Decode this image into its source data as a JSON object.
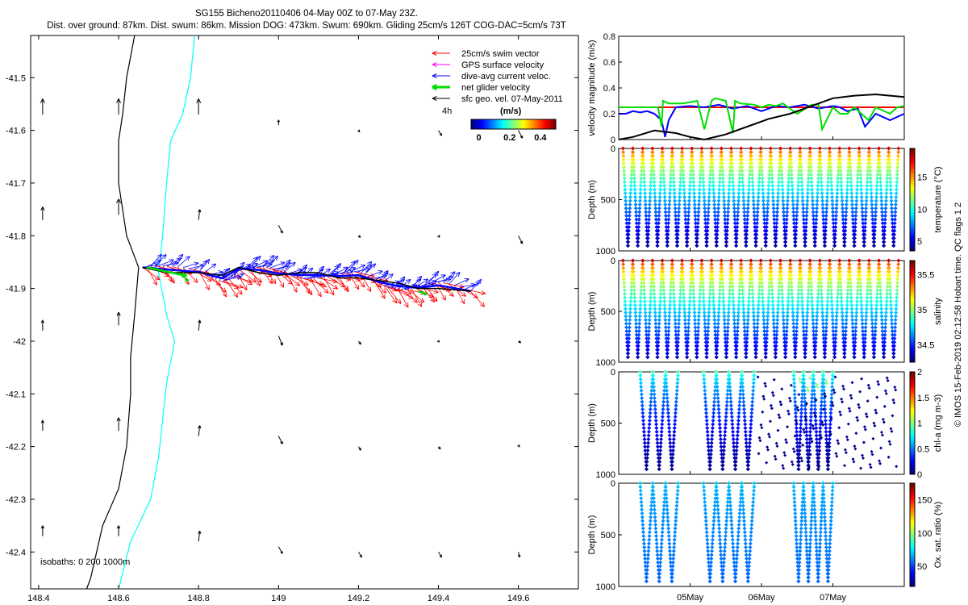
{
  "title_line1": "SG155 Bicheno20110406 04-May 00Z to 07-May 23Z.",
  "title_line2": "Dist. over ground: 87km. Dist. swum: 86km. Mission DOG: 473km. Swum: 690km. Gliding 25cm/s 126T COG-DAC=5cm/s 73T",
  "credit": "© IMOS 15-Feb-2019 02:12:58 Hobart time. QC flags 1  2",
  "colors": {
    "swim": "#ff0000",
    "gps": "#ff00ff",
    "dac": "#0000ff",
    "net": "#00dd00",
    "sfc": "#000000",
    "isobath0": "#000000",
    "isobath200": "#00ffff",
    "ref_line": "#ff0000"
  },
  "chart_data": [
    {
      "type": "quiver-map",
      "x": {
        "ticks": [
          "148.4",
          "148.6",
          "148.8",
          "149",
          "149.2",
          "149.4",
          "149.6"
        ],
        "lim": [
          148.38,
          149.75
        ]
      },
      "y": {
        "ticks": [
          "-41.5",
          "-41.6",
          "-41.7",
          "-41.8",
          "-41.9",
          "-42",
          "-42.1",
          "-42.2",
          "-42.3",
          "-42.4"
        ],
        "lim": [
          -42.47,
          -41.42
        ]
      },
      "legend": [
        {
          "label": "25cm/s swim vector",
          "color": "#ff0000",
          "bold": false
        },
        {
          "label": "GPS surface velocity",
          "color": "#ff00ff",
          "bold": false
        },
        {
          "label": "dive-avg current veloc.",
          "color": "#0000ff",
          "bold": false
        },
        {
          "label": "net glider velocity",
          "color": "#00dd00",
          "bold": true
        },
        {
          "label": "sfc geo. vel. 07-May-2011",
          "color": "#000000",
          "bold": false
        }
      ],
      "legend_time": "4h",
      "colorbar": {
        "label": "(m/s)",
        "ticks": [
          "0",
          "0.2",
          "0.4"
        ],
        "lim": [
          -0.05,
          0.5
        ]
      },
      "isobaths_label": "isobaths: 0   200  1000m",
      "isobath_0": [
        [
          148.64,
          -41.42
        ],
        [
          148.62,
          -41.5
        ],
        [
          148.61,
          -41.57
        ],
        [
          148.6,
          -41.62
        ],
        [
          148.6,
          -41.7
        ],
        [
          148.62,
          -41.8
        ],
        [
          148.65,
          -41.86
        ],
        [
          148.64,
          -41.95
        ],
        [
          148.63,
          -42.03
        ],
        [
          148.63,
          -42.1
        ],
        [
          148.62,
          -42.2
        ],
        [
          148.6,
          -42.28
        ],
        [
          148.56,
          -42.35
        ],
        [
          148.53,
          -42.45
        ],
        [
          148.52,
          -42.47
        ]
      ],
      "isobath_200": [
        [
          148.79,
          -41.42
        ],
        [
          148.78,
          -41.5
        ],
        [
          148.76,
          -41.57
        ],
        [
          148.73,
          -41.62
        ],
        [
          148.72,
          -41.7
        ],
        [
          148.71,
          -41.8
        ],
        [
          148.7,
          -41.87
        ],
        [
          148.72,
          -41.95
        ],
        [
          148.74,
          -42.0
        ],
        [
          148.72,
          -42.08
        ],
        [
          148.71,
          -42.15
        ],
        [
          148.7,
          -42.22
        ],
        [
          148.68,
          -42.3
        ],
        [
          148.63,
          -42.38
        ],
        [
          148.6,
          -42.47
        ]
      ],
      "geo_vectors": [
        [
          148.41,
          -41.57,
          0.0,
          0.03
        ],
        [
          148.6,
          -41.57,
          0.0,
          0.03
        ],
        [
          148.8,
          -41.57,
          0.0,
          0.03
        ],
        [
          149.0,
          -41.59,
          0.0,
          0.01
        ],
        [
          149.2,
          -41.6,
          0.003,
          -0.003
        ],
        [
          149.4,
          -41.6,
          0.008,
          -0.01
        ],
        [
          149.6,
          -41.6,
          0.01,
          -0.015
        ],
        [
          148.41,
          -41.77,
          0.0,
          0.025
        ],
        [
          148.6,
          -41.76,
          0.0,
          0.03
        ],
        [
          148.8,
          -41.77,
          0.003,
          0.02
        ],
        [
          149.0,
          -41.78,
          0.01,
          -0.015
        ],
        [
          149.2,
          -41.8,
          0.005,
          -0.003
        ],
        [
          149.4,
          -41.8,
          0.003,
          -0.003
        ],
        [
          149.6,
          -41.8,
          0.01,
          -0.015
        ],
        [
          148.41,
          -41.98,
          0.0,
          0.02
        ],
        [
          148.6,
          -41.97,
          0.0,
          0.025
        ],
        [
          148.8,
          -41.98,
          0.003,
          0.02
        ],
        [
          149.0,
          -41.99,
          0.01,
          -0.018
        ],
        [
          149.2,
          -42.0,
          0.006,
          -0.006
        ],
        [
          149.4,
          -42.0,
          0.002,
          -0.002
        ],
        [
          149.6,
          -42.0,
          0.006,
          -0.003
        ],
        [
          148.41,
          -42.17,
          0.0,
          0.02
        ],
        [
          148.6,
          -42.17,
          0.0,
          0.025
        ],
        [
          148.8,
          -42.18,
          0.003,
          0.02
        ],
        [
          149.0,
          -42.18,
          0.01,
          -0.015
        ],
        [
          149.2,
          -42.2,
          0.006,
          -0.007
        ],
        [
          149.4,
          -42.2,
          0.005,
          -0.005
        ],
        [
          149.6,
          -42.2,
          0.003,
          0.003
        ],
        [
          148.41,
          -42.37,
          0.0,
          0.02
        ],
        [
          148.6,
          -42.37,
          0.0,
          0.02
        ],
        [
          148.8,
          -42.38,
          0.003,
          0.02
        ],
        [
          149.0,
          -42.39,
          0.01,
          -0.013
        ],
        [
          149.2,
          -42.4,
          0.008,
          -0.01
        ],
        [
          149.4,
          -42.4,
          0.008,
          -0.01
        ],
        [
          149.6,
          -42.4,
          0.003,
          -0.01
        ]
      ],
      "track": [
        [
          148.66,
          -41.86
        ],
        [
          148.72,
          -41.87
        ],
        [
          148.8,
          -41.87
        ],
        [
          148.86,
          -41.875
        ],
        [
          148.9,
          -41.86
        ],
        [
          148.95,
          -41.87
        ],
        [
          149.0,
          -41.875
        ],
        [
          149.05,
          -41.87
        ],
        [
          149.1,
          -41.87
        ],
        [
          149.15,
          -41.88
        ],
        [
          149.2,
          -41.88
        ],
        [
          149.25,
          -41.885
        ],
        [
          149.3,
          -41.89
        ],
        [
          149.35,
          -41.9
        ],
        [
          149.4,
          -41.9
        ],
        [
          149.48,
          -41.905
        ]
      ],
      "net_velocity": [
        [
          148.67,
          -41.86,
          0.1,
          -0.01
        ],
        [
          148.77,
          -41.88,
          0.0,
          0.0
        ],
        [
          149.35,
          -41.905,
          0.02,
          0.0
        ]
      ]
    },
    {
      "type": "line",
      "ylabel": "velocity magnitude (m/s)",
      "ylim": [
        0,
        0.8
      ],
      "yticks": [
        "0",
        "0.2",
        "0.4",
        "0.6",
        "0.8"
      ],
      "series": [
        {
          "color": "#ff0000",
          "x": [
            0,
            4
          ],
          "y": [
            0.25,
            0.25
          ]
        },
        {
          "color": "#0000ff",
          "x": [
            0,
            0.1,
            0.2,
            0.3,
            0.4,
            0.5,
            0.6,
            0.65,
            0.7,
            0.8,
            1.0,
            1.2,
            1.4,
            1.6,
            1.8,
            2.0,
            2.2,
            2.4,
            2.6,
            2.8,
            3.0,
            3.1,
            3.2,
            3.35,
            3.45,
            3.6,
            3.8,
            4.0
          ],
          "y": [
            0.2,
            0.2,
            0.22,
            0.21,
            0.22,
            0.2,
            0.15,
            0.02,
            0.15,
            0.25,
            0.26,
            0.25,
            0.27,
            0.24,
            0.26,
            0.22,
            0.26,
            0.25,
            0.27,
            0.24,
            0.26,
            0.25,
            0.22,
            0.24,
            0.1,
            0.2,
            0.15,
            0.2
          ]
        },
        {
          "color": "#00dd00",
          "x": [
            0,
            0.2,
            0.4,
            0.55,
            0.6,
            0.62,
            0.7,
            0.9,
            1.1,
            1.2,
            1.3,
            1.35,
            1.5,
            1.6,
            1.63,
            1.7,
            1.9,
            2.0,
            2.1,
            2.2,
            2.3,
            2.5,
            2.7,
            2.8,
            2.85,
            3.0,
            3.1,
            3.2,
            3.3,
            3.5,
            3.6,
            3.8,
            3.9,
            4.0
          ],
          "y": [
            0.25,
            0.25,
            0.25,
            0.25,
            0.1,
            0.3,
            0.28,
            0.28,
            0.3,
            0.08,
            0.3,
            0.32,
            0.3,
            0.05,
            0.3,
            0.28,
            0.27,
            0.25,
            0.27,
            0.26,
            0.28,
            0.2,
            0.27,
            0.27,
            0.08,
            0.25,
            0.2,
            0.2,
            0.25,
            0.15,
            0.25,
            0.2,
            0.25,
            0.26
          ]
        },
        {
          "color": "#000000",
          "x": [
            0,
            0.2,
            0.5,
            0.8,
            1.0,
            1.2,
            1.5,
            1.8,
            2.1,
            2.4,
            2.7,
            3.0,
            3.3,
            3.6,
            3.8,
            4.0
          ],
          "y": [
            0.0,
            0.02,
            0.07,
            0.05,
            0.02,
            0.0,
            0.04,
            0.1,
            0.16,
            0.2,
            0.26,
            0.32,
            0.34,
            0.35,
            0.34,
            0.33
          ]
        }
      ]
    },
    {
      "type": "scatter",
      "ylabel": "Depth (m)",
      "ylim": [
        1000,
        0
      ],
      "yticks": [
        "0",
        "500",
        "1000"
      ],
      "colorbar_label": "temperature (°C)",
      "colorbar_ticks": [
        {
          "label": "5",
          "v": 5
        },
        {
          "label": "10",
          "v": 10
        },
        {
          "label": "15",
          "v": 15
        }
      ],
      "clim": [
        3.5,
        19.5
      ],
      "dives": {
        "start": 0.06,
        "end": 3.92,
        "count": 28,
        "max_depth": 950,
        "gaps": [],
        "sparse_from": null
      },
      "profile": {
        "surface": 18,
        "bottom": 4
      }
    },
    {
      "type": "scatter",
      "ylabel": "Depth (m)",
      "ylim": [
        1000,
        0
      ],
      "yticks": [
        "0",
        "500",
        "1000"
      ],
      "colorbar_label": "salinity",
      "colorbar_ticks": [
        {
          "label": "34.5",
          "v": 34.5
        },
        {
          "label": "35",
          "v": 35
        },
        {
          "label": "35.5",
          "v": 35.5
        }
      ],
      "clim": [
        34.25,
        35.7
      ],
      "dives": {
        "start": 0.06,
        "end": 3.92,
        "count": 28,
        "max_depth": 950,
        "gaps": [],
        "sparse_from": null
      },
      "profile": {
        "surface": 35.6,
        "bottom": 34.35
      }
    },
    {
      "type": "scatter",
      "ylabel": "Depth (m)",
      "ylim": [
        1000,
        0
      ],
      "yticks": [
        "0",
        "500",
        "1000"
      ],
      "colorbar_label": "chl-a (mg m-3)",
      "colorbar_ticks": [
        {
          "label": "0",
          "v": 0
        },
        {
          "label": "0.5",
          "v": 0.5
        },
        {
          "label": "1",
          "v": 1
        },
        {
          "label": "1.5",
          "v": 1.5
        },
        {
          "label": "2",
          "v": 2
        }
      ],
      "clim": [
        0,
        2
      ],
      "dives": {
        "start": 0.3,
        "end": 1.9,
        "count": 9,
        "max_depth": 950,
        "gaps": [
          [
            0.85,
            1.1
          ]
        ],
        "sparse_from": 1.95
      },
      "profile": {
        "surface": 0.9,
        "bottom": 0.02
      },
      "extra_dives": {
        "start": 2.45,
        "end": 3.0,
        "count": 4
      }
    },
    {
      "type": "scatter",
      "ylabel": "Depth (m)",
      "ylim": [
        1000,
        0
      ],
      "yticks": [
        "0",
        "500",
        "1000"
      ],
      "colorbar_label": "Ox. sat. ratio (%)",
      "colorbar_ticks": [
        {
          "label": "50",
          "v": 50
        },
        {
          "label": "100",
          "v": 100
        },
        {
          "label": "150",
          "v": 150
        }
      ],
      "clim": [
        20,
        175
      ],
      "dives": {
        "start": 0.3,
        "end": 1.9,
        "count": 9,
        "max_depth": 950,
        "gaps": [
          [
            0.85,
            1.1
          ]
        ],
        "sparse_from": null
      },
      "profile": {
        "surface": 70,
        "bottom": 55
      },
      "extra_dives": {
        "start": 2.45,
        "end": 3.0,
        "count": 4
      }
    },
    {
      "type": "time-axis",
      "xlim": [
        0,
        4
      ],
      "ticks": [
        {
          "label": "05May",
          "v": 1
        },
        {
          "label": "06May",
          "v": 2
        },
        {
          "label": "07May",
          "v": 3
        }
      ]
    }
  ]
}
